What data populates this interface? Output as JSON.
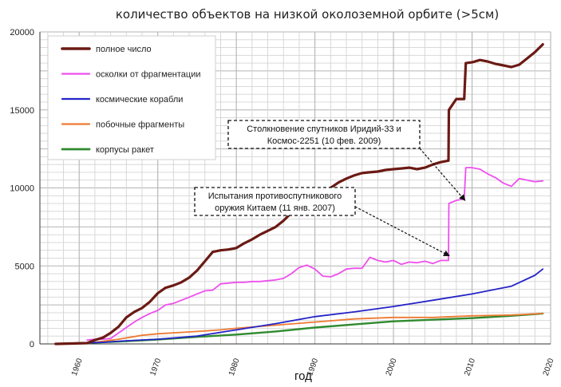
{
  "chart_data": {
    "type": "line",
    "title": "количество объектов на низкой околоземной орбите (>5см)",
    "xlabel": "год",
    "ylabel": "",
    "xlim": [
      1955,
      2020
    ],
    "ylim": [
      0,
      20000
    ],
    "x_ticks": [
      1960,
      1970,
      1980,
      1990,
      2000,
      2010,
      2020
    ],
    "y_ticks": [
      0,
      5000,
      10000,
      15000,
      20000
    ],
    "grid": true,
    "legend_position": "top-left",
    "series": [
      {
        "name": "полное число",
        "color": "#6b1a14",
        "width": 3.2,
        "points": [
          [
            1957,
            0
          ],
          [
            1961,
            50
          ],
          [
            1962,
            250
          ],
          [
            1963,
            400
          ],
          [
            1964,
            700
          ],
          [
            1965,
            1100
          ],
          [
            1966,
            1700
          ],
          [
            1967,
            2050
          ],
          [
            1968,
            2300
          ],
          [
            1969,
            2700
          ],
          [
            1970,
            3250
          ],
          [
            1971,
            3600
          ],
          [
            1972,
            3750
          ],
          [
            1973,
            3950
          ],
          [
            1974,
            4250
          ],
          [
            1975,
            4700
          ],
          [
            1976,
            5300
          ],
          [
            1977,
            5900
          ],
          [
            1978,
            6000
          ],
          [
            1979,
            6050
          ],
          [
            1980,
            6150
          ],
          [
            1981,
            6450
          ],
          [
            1982,
            6700
          ],
          [
            1983,
            7000
          ],
          [
            1984,
            7250
          ],
          [
            1985,
            7500
          ],
          [
            1986,
            7900
          ],
          [
            1987,
            8400
          ],
          [
            1988,
            8800
          ],
          [
            1989,
            9200
          ],
          [
            1990,
            9500
          ],
          [
            1991,
            9800
          ],
          [
            1992,
            10000
          ],
          [
            1993,
            10350
          ],
          [
            1994,
            10600
          ],
          [
            1995,
            10800
          ],
          [
            1996,
            10950
          ],
          [
            1997,
            11000
          ],
          [
            1998,
            11050
          ],
          [
            1999,
            11150
          ],
          [
            2000,
            11200
          ],
          [
            2001,
            11250
          ],
          [
            2002,
            11300
          ],
          [
            2003,
            11200
          ],
          [
            2004,
            11300
          ],
          [
            2005,
            11500
          ],
          [
            2006,
            11650
          ],
          [
            2007,
            11750
          ],
          [
            2007.05,
            15000
          ],
          [
            2008,
            15700
          ],
          [
            2009,
            15700
          ],
          [
            2009.2,
            18000
          ],
          [
            2010,
            18050
          ],
          [
            2011,
            18200
          ],
          [
            2012,
            18100
          ],
          [
            2013,
            17950
          ],
          [
            2014,
            17850
          ],
          [
            2015,
            17750
          ],
          [
            2016,
            17900
          ],
          [
            2017,
            18300
          ],
          [
            2018,
            18700
          ],
          [
            2019,
            19200
          ]
        ]
      },
      {
        "name": "осколки от фрагментации",
        "color": "#ee4fee",
        "width": 1.8,
        "points": [
          [
            1961,
            250
          ],
          [
            1962,
            300
          ],
          [
            1963,
            300
          ],
          [
            1964,
            350
          ],
          [
            1965,
            700
          ],
          [
            1966,
            1050
          ],
          [
            1967,
            1400
          ],
          [
            1968,
            1700
          ],
          [
            1969,
            1950
          ],
          [
            1970,
            2150
          ],
          [
            1971,
            2500
          ],
          [
            1972,
            2600
          ],
          [
            1973,
            2800
          ],
          [
            1974,
            3000
          ],
          [
            1975,
            3200
          ],
          [
            1976,
            3400
          ],
          [
            1977,
            3450
          ],
          [
            1978,
            3850
          ],
          [
            1979,
            3900
          ],
          [
            1980,
            3950
          ],
          [
            1981,
            3950
          ],
          [
            1982,
            4000
          ],
          [
            1983,
            4000
          ],
          [
            1984,
            4050
          ],
          [
            1985,
            4100
          ],
          [
            1986,
            4200
          ],
          [
            1987,
            4500
          ],
          [
            1988,
            4900
          ],
          [
            1989,
            5050
          ],
          [
            1990,
            4800
          ],
          [
            1991,
            4350
          ],
          [
            1992,
            4300
          ],
          [
            1993,
            4500
          ],
          [
            1994,
            4800
          ],
          [
            1995,
            4850
          ],
          [
            1996,
            4850
          ],
          [
            1997,
            5550
          ],
          [
            1998,
            5350
          ],
          [
            1999,
            5250
          ],
          [
            2000,
            5350
          ],
          [
            2001,
            5100
          ],
          [
            2002,
            5250
          ],
          [
            2003,
            5200
          ],
          [
            2004,
            5300
          ],
          [
            2005,
            5150
          ],
          [
            2006,
            5350
          ],
          [
            2007,
            5350
          ],
          [
            2007.05,
            9000
          ],
          [
            2008,
            9200
          ],
          [
            2009,
            9300
          ],
          [
            2009.2,
            11300
          ],
          [
            2010,
            11300
          ],
          [
            2011,
            11200
          ],
          [
            2012,
            10900
          ],
          [
            2013,
            10650
          ],
          [
            2014,
            10300
          ],
          [
            2015,
            10100
          ],
          [
            2016,
            10600
          ],
          [
            2017,
            10500
          ],
          [
            2018,
            10400
          ],
          [
            2019,
            10450
          ]
        ]
      },
      {
        "name": "космические корабли",
        "color": "#2424c8",
        "width": 1.8,
        "points": [
          [
            1957,
            0
          ],
          [
            1960,
            50
          ],
          [
            1963,
            100
          ],
          [
            1966,
            200
          ],
          [
            1970,
            300
          ],
          [
            1975,
            500
          ],
          [
            1980,
            900
          ],
          [
            1985,
            1300
          ],
          [
            1990,
            1750
          ],
          [
            1995,
            2050
          ],
          [
            2000,
            2400
          ],
          [
            2005,
            2800
          ],
          [
            2010,
            3200
          ],
          [
            2015,
            3700
          ],
          [
            2018,
            4400
          ],
          [
            2019,
            4800
          ]
        ]
      },
      {
        "name": "побочные фрагменты",
        "color": "#ee7a33",
        "width": 1.8,
        "points": [
          [
            1962,
            100
          ],
          [
            1965,
            300
          ],
          [
            1968,
            550
          ],
          [
            1970,
            650
          ],
          [
            1975,
            800
          ],
          [
            1978,
            900
          ],
          [
            1980,
            1000
          ],
          [
            1985,
            1200
          ],
          [
            1990,
            1400
          ],
          [
            1995,
            1600
          ],
          [
            2000,
            1700
          ],
          [
            2005,
            1700
          ],
          [
            2010,
            1800
          ],
          [
            2015,
            1850
          ],
          [
            2019,
            1950
          ]
        ]
      },
      {
        "name": "корпусы ракет",
        "color": "#2f8a2f",
        "width": 2.4,
        "points": [
          [
            1957,
            0
          ],
          [
            1960,
            50
          ],
          [
            1965,
            150
          ],
          [
            1970,
            280
          ],
          [
            1975,
            450
          ],
          [
            1980,
            600
          ],
          [
            1985,
            800
          ],
          [
            1990,
            1050
          ],
          [
            1995,
            1250
          ],
          [
            2000,
            1450
          ],
          [
            2005,
            1550
          ],
          [
            2010,
            1650
          ],
          [
            2015,
            1800
          ],
          [
            2019,
            1950
          ]
        ]
      }
    ],
    "annotations": [
      {
        "lines": [
          "Столкновение спутников Иридий-33 и",
          "Космос-2251 (10 фев. 2009)"
        ],
        "target": [
          2009.1,
          9200
        ]
      },
      {
        "lines": [
          "Испытания противоспутникового",
          "оружия Китаем (11 янв. 2007)"
        ],
        "target": [
          2007.1,
          5650
        ]
      }
    ]
  }
}
